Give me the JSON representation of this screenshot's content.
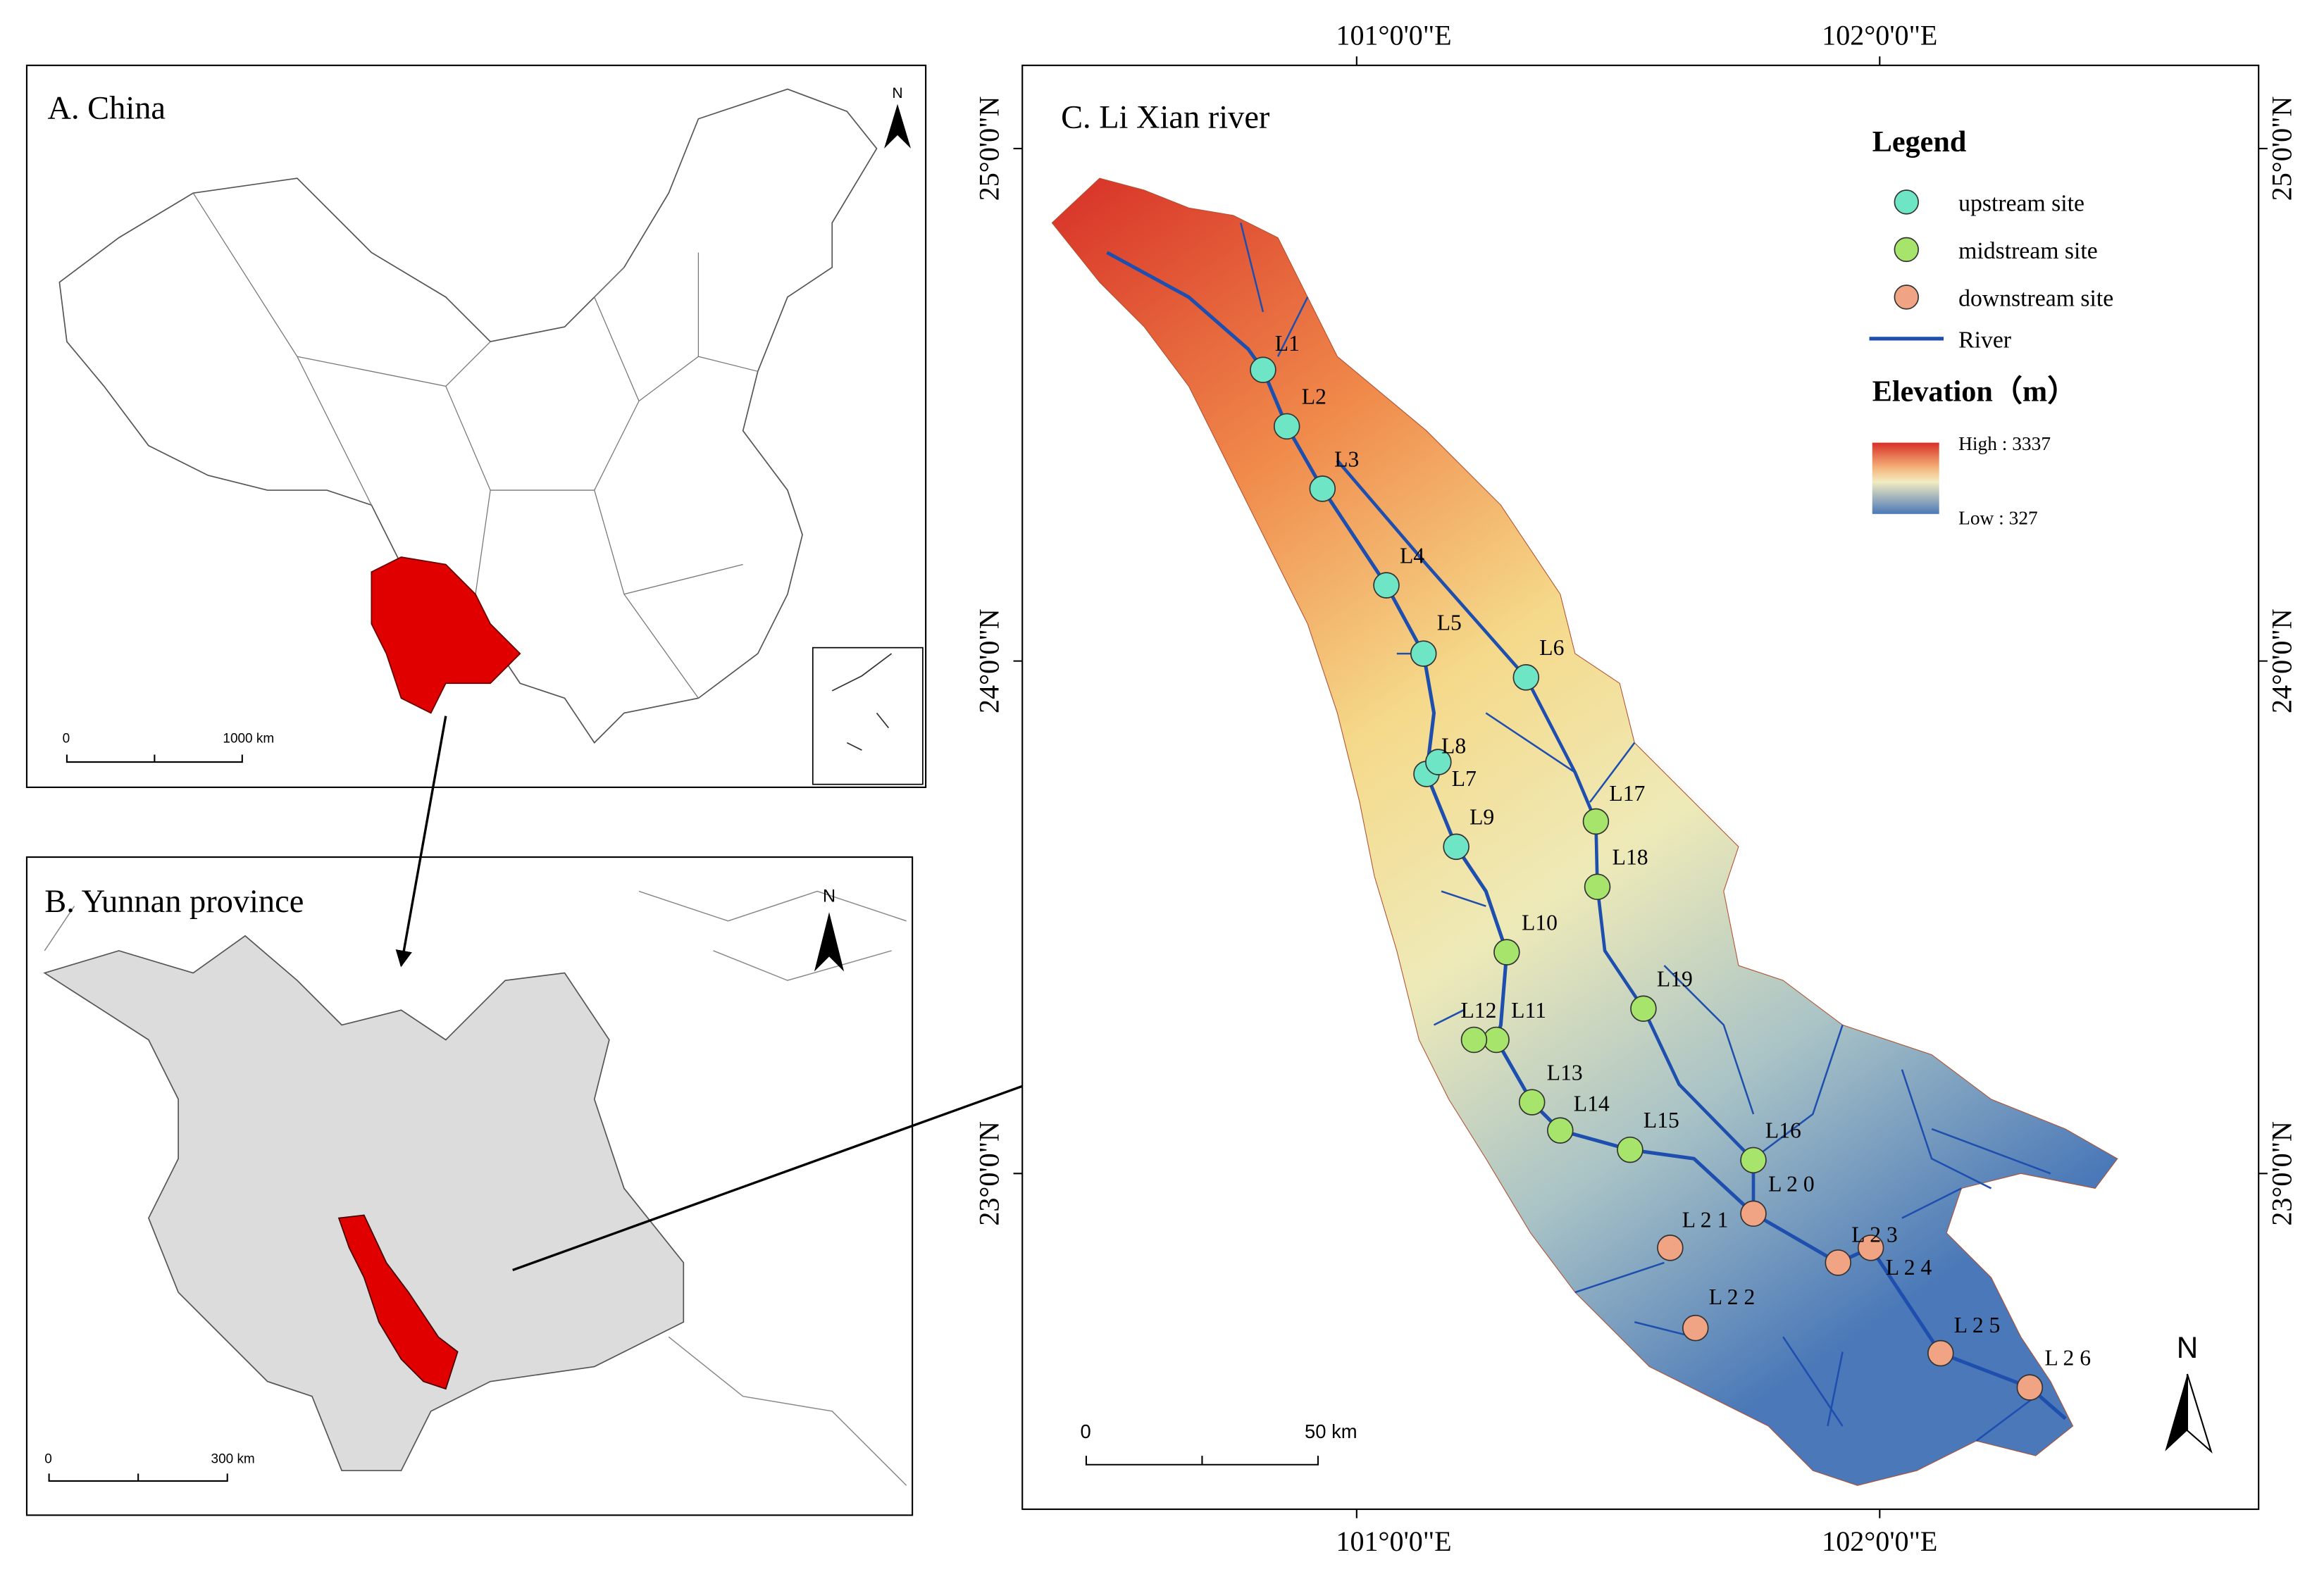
{
  "panel_a": {
    "title": "A. China",
    "scale_labels": [
      "0",
      "1000 km"
    ],
    "north": "N"
  },
  "panel_b": {
    "title": "B. Yunnan province",
    "scale_labels": [
      "0",
      "300 km"
    ],
    "north": "N"
  },
  "panel_c": {
    "title": "C. Li Xian river",
    "longitude_labels": [
      "101°0'0\"E",
      "102°0'0\"E"
    ],
    "latitude_labels": [
      "25°0'0\"N",
      "24°0'0\"N",
      "23°0'0\"N"
    ],
    "scale_labels": [
      "0",
      "50 km"
    ],
    "north": "N",
    "legend": {
      "title": "Legend",
      "items": [
        {
          "label": "upstream site",
          "color": "#6ee6c6",
          "sites": [
            "L1",
            "L2",
            "L3",
            "L4",
            "L5",
            "L6",
            "L7",
            "L8",
            "L9"
          ]
        },
        {
          "label": "midstream site",
          "color": "#a6e46c",
          "sites": [
            "L10",
            "L11",
            "L12",
            "L13",
            "L14",
            "L15",
            "L16",
            "L17",
            "L18",
            "L19"
          ]
        },
        {
          "label": "downstream site",
          "color": "#f0a484",
          "sites": [
            "L 2 0",
            "L 2 1",
            "L 2 2",
            "L 2 3",
            "L 2 4",
            "L 2 5",
            "L 2 6"
          ]
        }
      ],
      "river": {
        "label": "River",
        "color": "#1f4fae"
      },
      "elevation_title": "Elevation（m）",
      "high": "High : 3337",
      "low": "Low : 327"
    }
  }
}
